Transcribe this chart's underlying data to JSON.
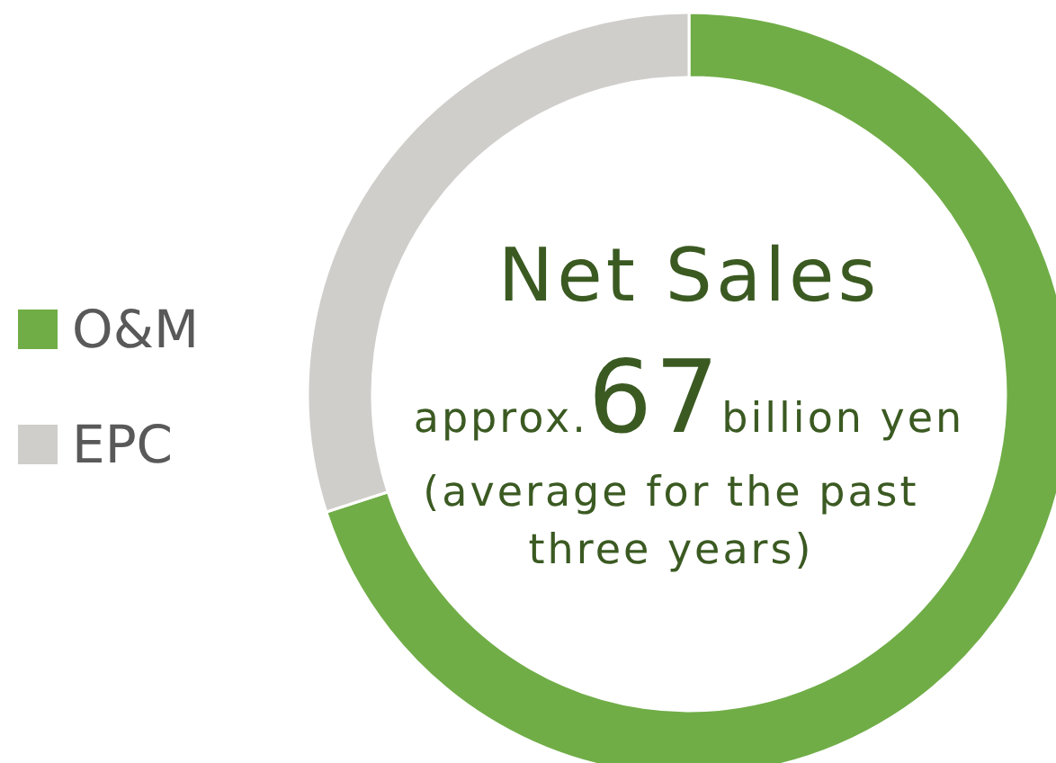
{
  "chart_data": {
    "type": "donut",
    "title": "Net Sales",
    "categories": [
      "O&M",
      "EPC"
    ],
    "values": [
      70,
      30
    ],
    "colors": [
      "#70ad47",
      "#d0cecb"
    ],
    "legend": "left",
    "annotations": [
      "approx.",
      "67",
      "billion yen",
      "(average for the past",
      "three years)"
    ]
  }
}
